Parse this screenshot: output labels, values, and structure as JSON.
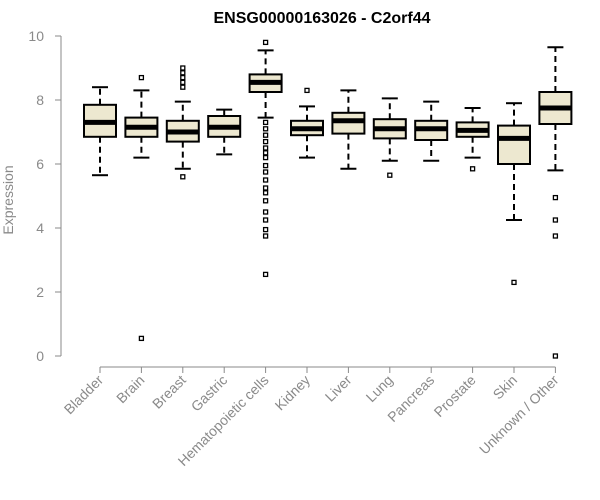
{
  "chart_data": {
    "type": "boxplot",
    "title": "ENSG00000163026 - C2orf44",
    "ylabel": "Expression",
    "xlabel": "",
    "ylim": [
      0,
      10
    ],
    "yticks": [
      "0",
      "2",
      "4",
      "6",
      "8",
      "10"
    ],
    "colors": {
      "box_fill": "#ede8d0",
      "stroke": "#000000",
      "axis": "#8a8a8a"
    },
    "categories": [
      "Bladder",
      "Brain",
      "Breast",
      "Gastric",
      "Hematopoietic cells",
      "Kidney",
      "Liver",
      "Lung",
      "Pancreas",
      "Prostate",
      "Skin",
      "Unknown / Other"
    ],
    "boxes": [
      {
        "whisker_low": 5.65,
        "q1": 6.85,
        "median": 7.3,
        "q3": 7.85,
        "whisker_high": 8.4,
        "outliers": []
      },
      {
        "whisker_low": 6.2,
        "q1": 6.85,
        "median": 7.15,
        "q3": 7.45,
        "whisker_high": 8.3,
        "outliers": [
          8.7,
          0.55
        ]
      },
      {
        "whisker_low": 5.85,
        "q1": 6.7,
        "median": 7.0,
        "q3": 7.35,
        "whisker_high": 7.95,
        "outliers": [
          8.4,
          8.55,
          8.7,
          8.85,
          9.0,
          5.6
        ]
      },
      {
        "whisker_low": 6.3,
        "q1": 6.85,
        "median": 7.15,
        "q3": 7.5,
        "whisker_high": 7.7,
        "outliers": []
      },
      {
        "whisker_low": 7.45,
        "q1": 8.25,
        "median": 8.55,
        "q3": 8.8,
        "whisker_high": 9.55,
        "outliers": [
          9.8,
          7.3,
          7.1,
          6.9,
          6.7,
          6.5,
          6.35,
          6.2,
          5.95,
          5.75,
          5.5,
          5.25,
          5.1,
          4.85,
          4.5,
          4.25,
          3.95,
          3.75,
          2.55
        ]
      },
      {
        "whisker_low": 6.2,
        "q1": 6.9,
        "median": 7.1,
        "q3": 7.35,
        "whisker_high": 7.8,
        "outliers": [
          8.3
        ]
      },
      {
        "whisker_low": 5.85,
        "q1": 6.95,
        "median": 7.35,
        "q3": 7.6,
        "whisker_high": 8.3,
        "outliers": []
      },
      {
        "whisker_low": 6.1,
        "q1": 6.8,
        "median": 7.1,
        "q3": 7.4,
        "whisker_high": 8.05,
        "outliers": [
          5.65
        ]
      },
      {
        "whisker_low": 6.1,
        "q1": 6.75,
        "median": 7.1,
        "q3": 7.35,
        "whisker_high": 7.95,
        "outliers": []
      },
      {
        "whisker_low": 6.2,
        "q1": 6.85,
        "median": 7.05,
        "q3": 7.3,
        "whisker_high": 7.75,
        "outliers": [
          5.85
        ]
      },
      {
        "whisker_low": 4.25,
        "q1": 6.0,
        "median": 6.8,
        "q3": 7.2,
        "whisker_high": 7.9,
        "outliers": [
          2.3
        ]
      },
      {
        "whisker_low": 5.8,
        "q1": 7.25,
        "median": 7.75,
        "q3": 8.25,
        "whisker_high": 9.65,
        "outliers": [
          4.95,
          4.25,
          3.75,
          0.0
        ]
      }
    ]
  }
}
